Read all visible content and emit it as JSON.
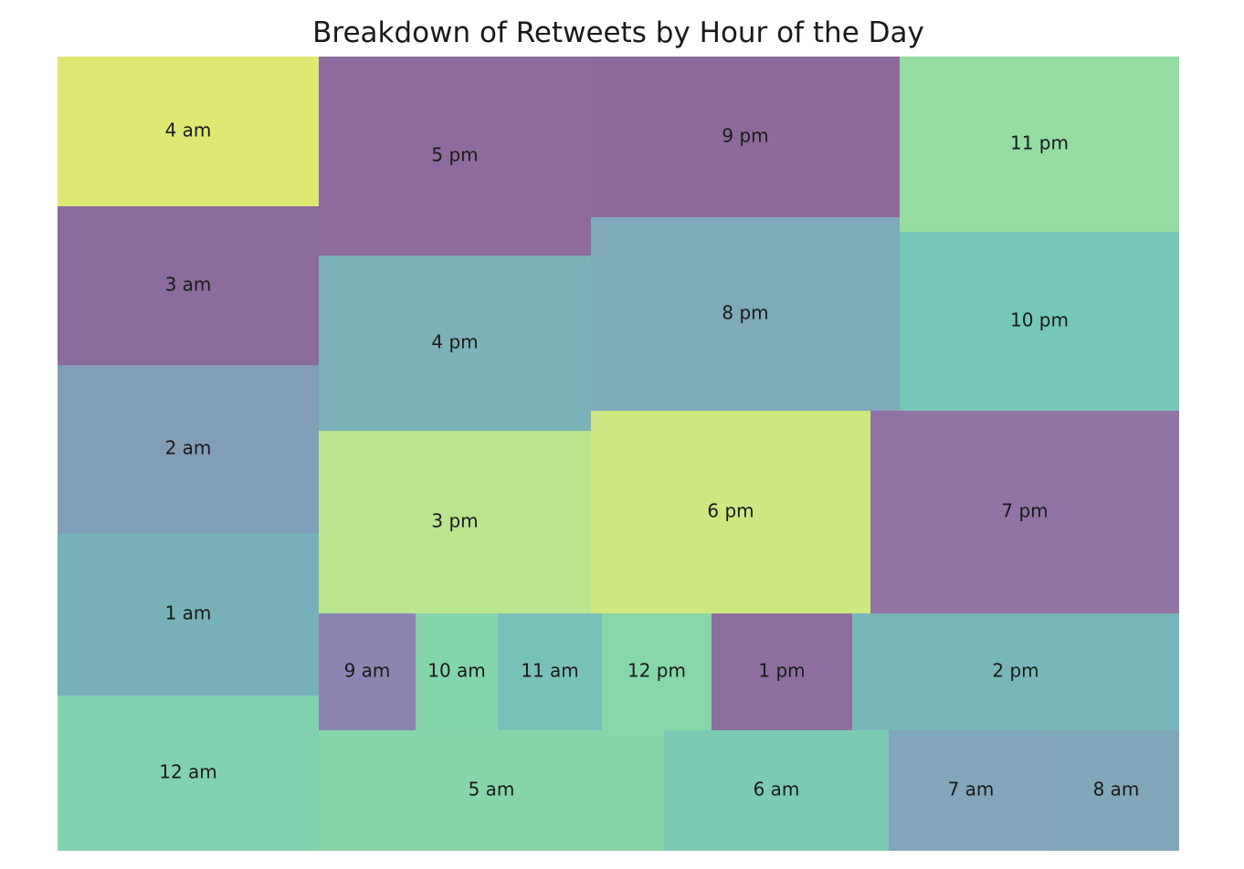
{
  "chart_data": {
    "type": "treemap",
    "title": "Breakdown of Retweets by Hour of the Day",
    "series": [
      {
        "label": "4 am",
        "color": "#dde973"
      },
      {
        "label": "3 am",
        "color": "#8c6b9d"
      },
      {
        "label": "2 am",
        "color": "#829db6"
      },
      {
        "label": "1 am",
        "color": "#78b0b9"
      },
      {
        "label": "12 am",
        "color": "#82d1b0"
      },
      {
        "label": "5 pm",
        "color": "#8f6b9d"
      },
      {
        "label": "9 pm",
        "color": "#8d6a9b"
      },
      {
        "label": "11 pm",
        "color": "#96dca2"
      },
      {
        "label": "4 pm",
        "color": "#7cb1b9"
      },
      {
        "label": "8 pm",
        "color": "#7eaab9"
      },
      {
        "label": "10 pm",
        "color": "#76c7b7"
      },
      {
        "label": "3 pm",
        "color": "#b9e58f"
      },
      {
        "label": "6 pm",
        "color": "#cde881"
      },
      {
        "label": "7 pm",
        "color": "#9173a5"
      },
      {
        "label": "9 am",
        "color": "#8c84b1"
      },
      {
        "label": "10 am",
        "color": "#84d5ac"
      },
      {
        "label": "11 am",
        "color": "#78c1b8"
      },
      {
        "label": "12 pm",
        "color": "#88d7a9"
      },
      {
        "label": "1 pm",
        "color": "#8e6ea1"
      },
      {
        "label": "2 pm",
        "color": "#79b6b9"
      },
      {
        "label": "5 am",
        "color": "#88d5aa"
      },
      {
        "label": "6 am",
        "color": "#7ccab4"
      },
      {
        "label": "7 am",
        "color": "#81a5ba"
      },
      {
        "label": "8 am",
        "color": "#80a8ba"
      }
    ]
  }
}
